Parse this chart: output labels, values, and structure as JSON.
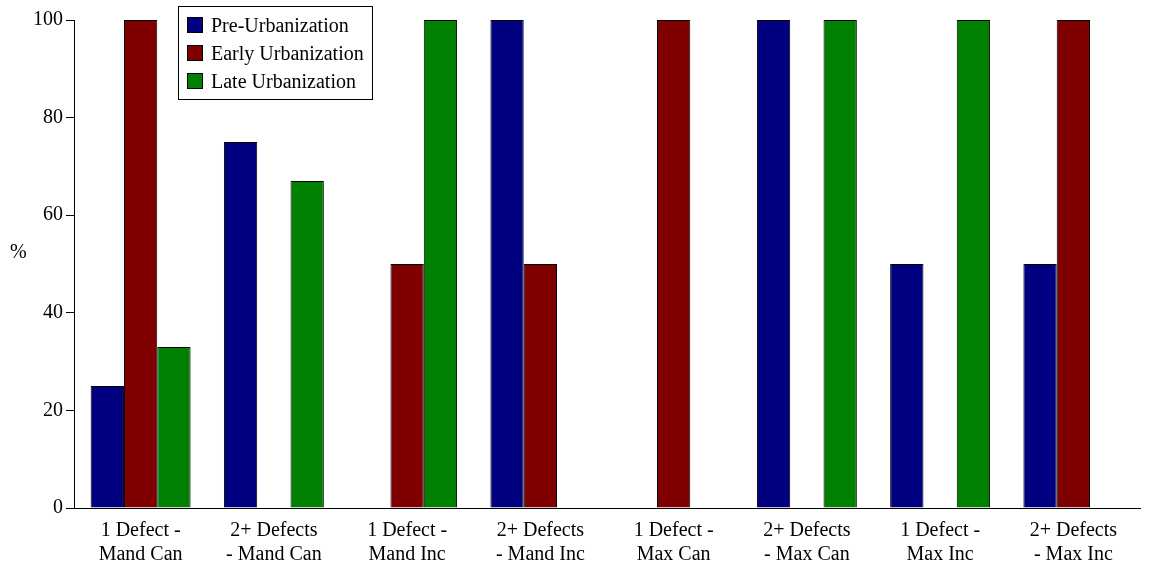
{
  "chart_data": {
    "type": "bar",
    "ylabel": "%",
    "categories": [
      "1 Defect -\nMand Can",
      "2+ Defects\n- Mand Can",
      "1 Defect -\nMand Inc",
      "2+ Defects\n- Mand Inc",
      "1 Defect -\nMax Can",
      "2+ Defects\n- Max Can",
      "1 Defect -\nMax Inc",
      "2+ Defects\n- Max Inc"
    ],
    "series": [
      {
        "name": "Pre-Urbanization",
        "color": "#000080",
        "values": [
          25,
          75,
          0,
          100,
          0,
          100,
          50,
          50
        ]
      },
      {
        "name": "Early Urbanization",
        "color": "#800000",
        "values": [
          100,
          0,
          50,
          50,
          100,
          0,
          0,
          100
        ]
      },
      {
        "name": "Late Urbanization",
        "color": "#008000",
        "values": [
          33,
          67,
          100,
          0,
          0,
          100,
          100,
          0
        ]
      }
    ],
    "ylim": [
      0,
      100
    ],
    "yticks": [
      0,
      20,
      40,
      60,
      80,
      100
    ],
    "grid": false,
    "legend": "top left"
  }
}
